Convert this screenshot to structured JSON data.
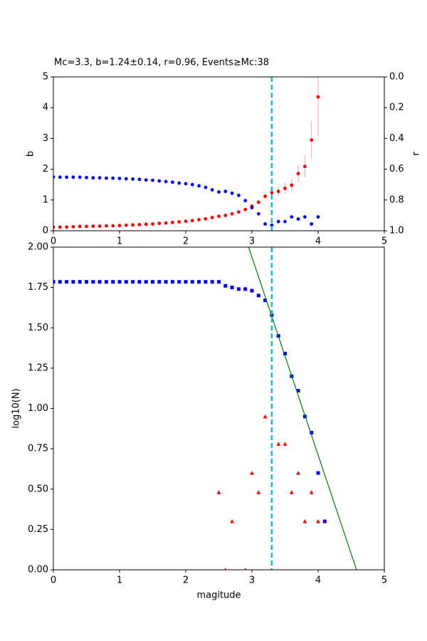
{
  "chart_data": [
    {
      "type": "scatter",
      "title": "Mc=3.3, b=1.24±0.14, r=0.96, Events≥Mc:38",
      "ylabel": "b",
      "y2label": "r",
      "xlim": [
        0,
        5
      ],
      "xticks": [
        0,
        1,
        2,
        3,
        4,
        5
      ],
      "ylim": [
        0,
        5
      ],
      "yticks": [
        0,
        1,
        2,
        3,
        4,
        5
      ],
      "y2lim": [
        1.0,
        0.0
      ],
      "y2ticks": [
        {
          "value": 0.0,
          "label": "0.0"
        },
        {
          "value": 0.2,
          "label": "0.2"
        },
        {
          "value": 0.4,
          "label": "0.4"
        },
        {
          "value": 0.6,
          "label": "0.6"
        },
        {
          "value": 0.8,
          "label": "0.8"
        },
        {
          "value": 1.0,
          "label": "1.0"
        }
      ],
      "vline": 3.3,
      "vline_color": "#17becf",
      "series": [
        {
          "color": "#ff0000",
          "marker": "o",
          "error_color": "#f4a6a6",
          "x": [
            0,
            0.1,
            0.2,
            0.3,
            0.4,
            0.5,
            0.6,
            0.7,
            0.8,
            0.9,
            1.0,
            1.1,
            1.2,
            1.3,
            1.4,
            1.5,
            1.6,
            1.7,
            1.8,
            1.9,
            2.0,
            2.1,
            2.2,
            2.3,
            2.4,
            2.5,
            2.6,
            2.7,
            2.8,
            2.9,
            3.0,
            3.1,
            3.2,
            3.3,
            3.4,
            3.5,
            3.6,
            3.7,
            3.8,
            3.9,
            4.0
          ],
          "values": [
            0.12,
            0.12,
            0.12,
            0.13,
            0.14,
            0.14,
            0.15,
            0.15,
            0.16,
            0.16,
            0.17,
            0.18,
            0.19,
            0.2,
            0.21,
            0.22,
            0.24,
            0.25,
            0.27,
            0.29,
            0.31,
            0.33,
            0.36,
            0.39,
            0.43,
            0.47,
            0.5,
            0.55,
            0.61,
            0.69,
            0.8,
            0.93,
            1.12,
            1.24,
            1.28,
            1.38,
            1.48,
            1.86,
            2.09,
            2.95,
            4.35
          ],
          "errors": [
            0.01,
            0.01,
            0.01,
            0.01,
            0.01,
            0.01,
            0.01,
            0.01,
            0.01,
            0.01,
            0.01,
            0.01,
            0.01,
            0.01,
            0.01,
            0.01,
            0.01,
            0.01,
            0.01,
            0.01,
            0.02,
            0.02,
            0.02,
            0.02,
            0.03,
            0.03,
            0.03,
            0.04,
            0.04,
            0.05,
            0.06,
            0.08,
            0.11,
            0.14,
            0.15,
            0.18,
            0.22,
            0.3,
            0.35,
            0.6,
            1.3
          ]
        },
        {
          "color": "#0000ff",
          "marker": "o",
          "axis": "y2",
          "x": [
            0,
            0.1,
            0.2,
            0.3,
            0.4,
            0.5,
            0.6,
            0.7,
            0.8,
            0.9,
            1.0,
            1.1,
            1.2,
            1.3,
            1.4,
            1.5,
            1.6,
            1.7,
            1.8,
            1.9,
            2.0,
            2.1,
            2.2,
            2.3,
            2.4,
            2.5,
            2.6,
            2.7,
            2.8,
            2.9,
            3.0,
            3.1,
            3.2,
            3.3,
            3.4,
            3.5,
            3.6,
            3.7,
            3.8,
            3.9,
            4.0
          ],
          "values": [
            0.65,
            0.652,
            0.652,
            0.652,
            0.652,
            0.654,
            0.656,
            0.656,
            0.658,
            0.658,
            0.66,
            0.662,
            0.664,
            0.666,
            0.67,
            0.672,
            0.676,
            0.68,
            0.684,
            0.69,
            0.694,
            0.7,
            0.708,
            0.718,
            0.734,
            0.748,
            0.744,
            0.756,
            0.77,
            0.804,
            0.85,
            0.89,
            0.956,
            0.964,
            0.94,
            0.94,
            0.91,
            0.924,
            0.91,
            0.956,
            0.91
          ]
        }
      ]
    },
    {
      "type": "scatter",
      "xlabel": "magitude",
      "ylabel": "log10(N)",
      "xlim": [
        0,
        5
      ],
      "xticks": [
        0,
        1,
        2,
        3,
        4,
        5
      ],
      "ylim": [
        0,
        2
      ],
      "yticks": [
        {
          "value": 0,
          "label": "0.00"
        },
        {
          "value": 0.25,
          "label": "0.25"
        },
        {
          "value": 0.5,
          "label": "0.50"
        },
        {
          "value": 0.75,
          "label": "0.75"
        },
        {
          "value": 1.0,
          "label": "1.00"
        },
        {
          "value": 1.25,
          "label": "1.25"
        },
        {
          "value": 1.5,
          "label": "1.50"
        },
        {
          "value": 1.75,
          "label": "1.75"
        },
        {
          "value": 2.0,
          "label": "2.00"
        }
      ],
      "vline": 3.3,
      "vline_color": "#17becf",
      "series": [
        {
          "color": "#0000ff",
          "marker": "s",
          "x": [
            0,
            0.1,
            0.2,
            0.3,
            0.4,
            0.5,
            0.6,
            0.7,
            0.8,
            0.9,
            1.0,
            1.1,
            1.2,
            1.3,
            1.4,
            1.5,
            1.6,
            1.7,
            1.8,
            1.9,
            2.0,
            2.1,
            2.2,
            2.3,
            2.4,
            2.5,
            2.6,
            2.7,
            2.8,
            2.9,
            3.0,
            3.1,
            3.2,
            3.3,
            3.4,
            3.5,
            3.6,
            3.7,
            3.8,
            3.9,
            4.0,
            4.1
          ],
          "values": [
            1.785,
            1.785,
            1.785,
            1.785,
            1.785,
            1.785,
            1.785,
            1.785,
            1.785,
            1.785,
            1.785,
            1.785,
            1.785,
            1.785,
            1.785,
            1.785,
            1.785,
            1.785,
            1.785,
            1.785,
            1.785,
            1.785,
            1.785,
            1.785,
            1.785,
            1.785,
            1.76,
            1.75,
            1.74,
            1.74,
            1.73,
            1.7,
            1.67,
            1.58,
            1.45,
            1.34,
            1.2,
            1.11,
            0.95,
            0.85,
            0.6,
            0.3
          ]
        },
        {
          "color": "#ff0000",
          "marker": "^",
          "x": [
            2.5,
            2.6,
            2.7,
            2.9,
            3.0,
            3.1,
            3.2,
            3.4,
            3.5,
            3.6,
            3.7,
            3.8,
            3.9,
            4.0
          ],
          "values": [
            0.48,
            0,
            0.3,
            0,
            0.6,
            0.48,
            0.95,
            0.78,
            0.78,
            0.48,
            0.6,
            0.3,
            0.48,
            0.3
          ]
        },
        {
          "color": "#008000",
          "marker": "line",
          "x": [
            2.95,
            4.58
          ],
          "values": [
            2.0,
            0.0
          ]
        }
      ]
    }
  ]
}
